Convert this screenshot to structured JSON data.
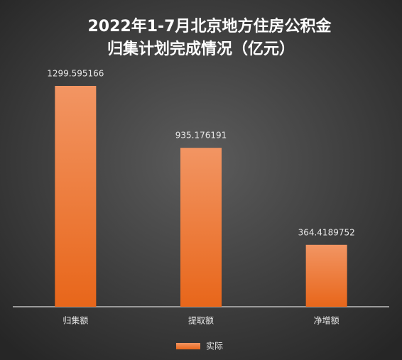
{
  "chart_data": {
    "type": "bar",
    "title": [
      "2022年1-7月北京地方住房公积金",
      "归集计划完成情况（亿元）"
    ],
    "categories": [
      "归集额",
      "提取额",
      "净增额"
    ],
    "series": [
      {
        "name": "实际",
        "color": "#ef7d35",
        "values": [
          1299.595166,
          935.176191,
          364.4189752
        ]
      }
    ],
    "legend": "bottom"
  }
}
